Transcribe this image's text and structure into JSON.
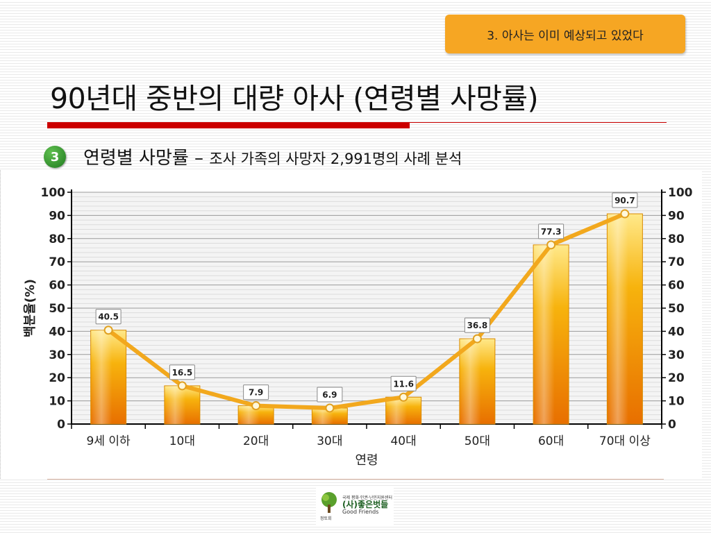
{
  "header": {
    "section_tag": "3. 아사는 이미 예상되고 있었다",
    "title": "90년대 중반의 대량 아사 (연령별 사망률)"
  },
  "section": {
    "number": "3",
    "lead": "연령별 사망률",
    "dash": " – ",
    "sub": "조사 가족의 사망자 2,991명의 사례 분석"
  },
  "footer": {
    "logo_small": "국제 평화·인권·난민지원센터",
    "logo_name": "(사)좋은벗들",
    "logo_english": "Good Friends",
    "logo_sub": "정토회"
  },
  "colors": {
    "bar_top": "#ffe98a",
    "bar_mid": "#f7b30d",
    "bar_bottom": "#e86f00",
    "line": "#f2a81d",
    "title_rule": "#cc0000",
    "tag": "#f6a623",
    "badge": "#2e8b2e"
  },
  "chart_data": {
    "type": "bar",
    "categories": [
      "9세 이하",
      "10대",
      "20대",
      "30대",
      "40대",
      "50대",
      "60대",
      "70대 이상"
    ],
    "values": [
      40.5,
      16.5,
      7.9,
      6.9,
      11.6,
      36.8,
      77.3,
      90.7
    ],
    "data_labels": [
      "40.5",
      "16.5",
      "7.9",
      "6.9",
      "11.6",
      "36.8",
      "77.3",
      "90.7"
    ],
    "overlay_line": true,
    "xlabel": "연령",
    "ylabel": "백분율(%)",
    "ylim": [
      0,
      100
    ],
    "yticks": [
      0,
      10,
      20,
      30,
      40,
      50,
      60,
      70,
      80,
      90,
      100
    ],
    "secondary_y_axis": true,
    "grid": true,
    "legend": "none"
  }
}
